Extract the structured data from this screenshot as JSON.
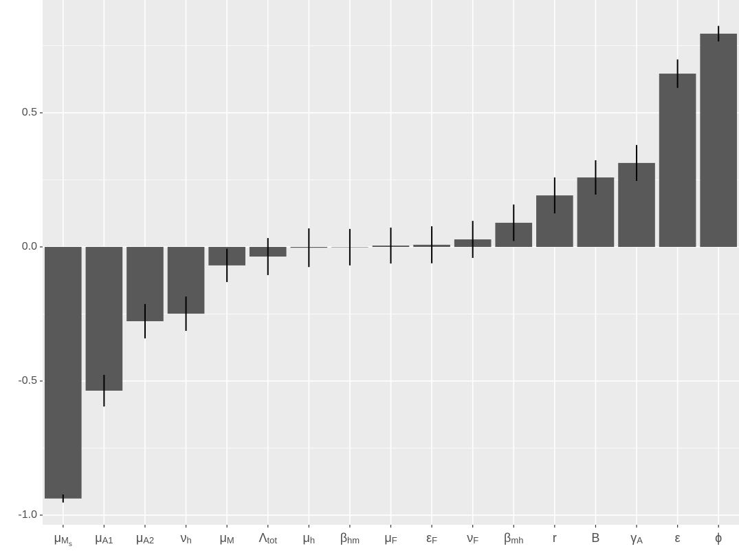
{
  "chart_data": {
    "type": "bar",
    "categories": [
      {
        "symbol": "μ",
        "sub": "M",
        "subsub": "s"
      },
      {
        "symbol": "μ",
        "sub": "A1"
      },
      {
        "symbol": "μ",
        "sub": "A2"
      },
      {
        "symbol": "ν",
        "sub": "h"
      },
      {
        "symbol": "μ",
        "sub": "M"
      },
      {
        "symbol": "Λ",
        "sub": "tot"
      },
      {
        "symbol": "μ",
        "sub": "h"
      },
      {
        "symbol": "β",
        "sub": "hm"
      },
      {
        "symbol": "μ",
        "sub": "F"
      },
      {
        "symbol": "ε",
        "sub": "F"
      },
      {
        "symbol": "ν",
        "sub": "F"
      },
      {
        "symbol": "β",
        "sub": "mh"
      },
      {
        "symbol": "r"
      },
      {
        "symbol": "B"
      },
      {
        "symbol": "γ",
        "sub": "A"
      },
      {
        "symbol": "ε"
      },
      {
        "symbol": "ϕ"
      }
    ],
    "values": [
      -0.938,
      -0.536,
      -0.277,
      -0.249,
      -0.069,
      -0.036,
      -0.003,
      -0.001,
      0.005,
      0.008,
      0.028,
      0.09,
      0.192,
      0.259,
      0.313,
      0.646,
      0.795
    ],
    "errors": [
      0.015,
      0.059,
      0.064,
      0.064,
      0.062,
      0.069,
      0.072,
      0.068,
      0.067,
      0.069,
      0.069,
      0.068,
      0.067,
      0.064,
      0.067,
      0.053,
      0.029
    ],
    "color": "#595959",
    "error_color": "#000000",
    "ylim": [
      -1.036,
      0.9205
    ],
    "yticks": [
      {
        "value": -1,
        "label": "-1.0"
      },
      -0.5,
      {
        "value": 0,
        "label": "0.0"
      },
      0.5
    ],
    "minor_yticks": [
      -0.75,
      -0.25,
      0.25,
      0.75
    ],
    "grid": true
  }
}
